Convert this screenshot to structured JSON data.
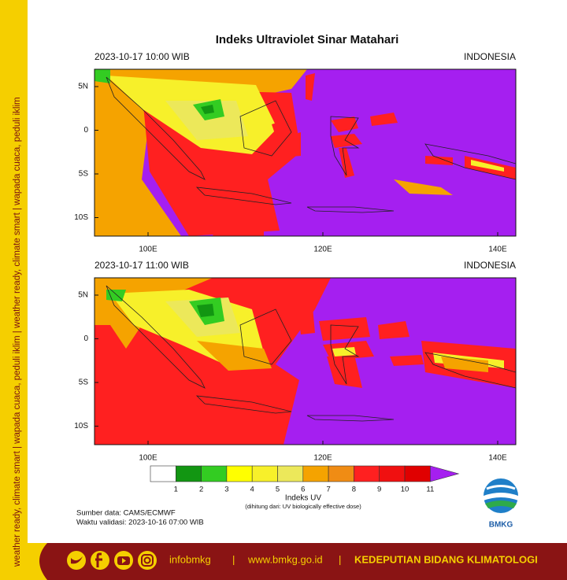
{
  "title": "Indeks Ultraviolet Sinar Matahari",
  "side_banner": "weather ready, climate smart | wapada cuaca, peduli iklim | weather ready, climate smart | wapada cuaca, peduli iklim",
  "panels": [
    {
      "datetime": "2023-10-17  10:00 WIB",
      "region": "INDONESIA",
      "lat_labels": [
        "5N",
        "0",
        "5S",
        "10S"
      ],
      "lon_labels": [
        "100E",
        "120E",
        "140E"
      ]
    },
    {
      "datetime": "2023-10-17  11:00 WIB",
      "region": "INDONESIA",
      "lat_labels": [
        "5N",
        "0",
        "5S",
        "10S"
      ],
      "lon_labels": [
        "100E",
        "120E",
        "140E"
      ]
    }
  ],
  "colorbar": {
    "colors": [
      "#ffffff",
      "#129612",
      "#33cc22",
      "#ffff00",
      "#f7f02a",
      "#ece85a",
      "#f5a300",
      "#f08c14",
      "#ff2020",
      "#f01010",
      "#e00000",
      "#a51ff0"
    ],
    "ticks": [
      1,
      2,
      3,
      4,
      5,
      6,
      7,
      8,
      9,
      10,
      11
    ],
    "label": "Indeks UV",
    "note": "(dihitung dari: UV biologically effective dose)"
  },
  "source": "Sumber data: CAMS/ECMWF",
  "validity": "Waktu validasi: 2023-10-16 07:00 WIB",
  "logo": "BMKG",
  "footer": {
    "handle": "infobmkg",
    "separator": "|",
    "website": "www.bmkg.go.id",
    "org": "KEDEPUTIAN BIDANG KLIMATOLOGI"
  }
}
